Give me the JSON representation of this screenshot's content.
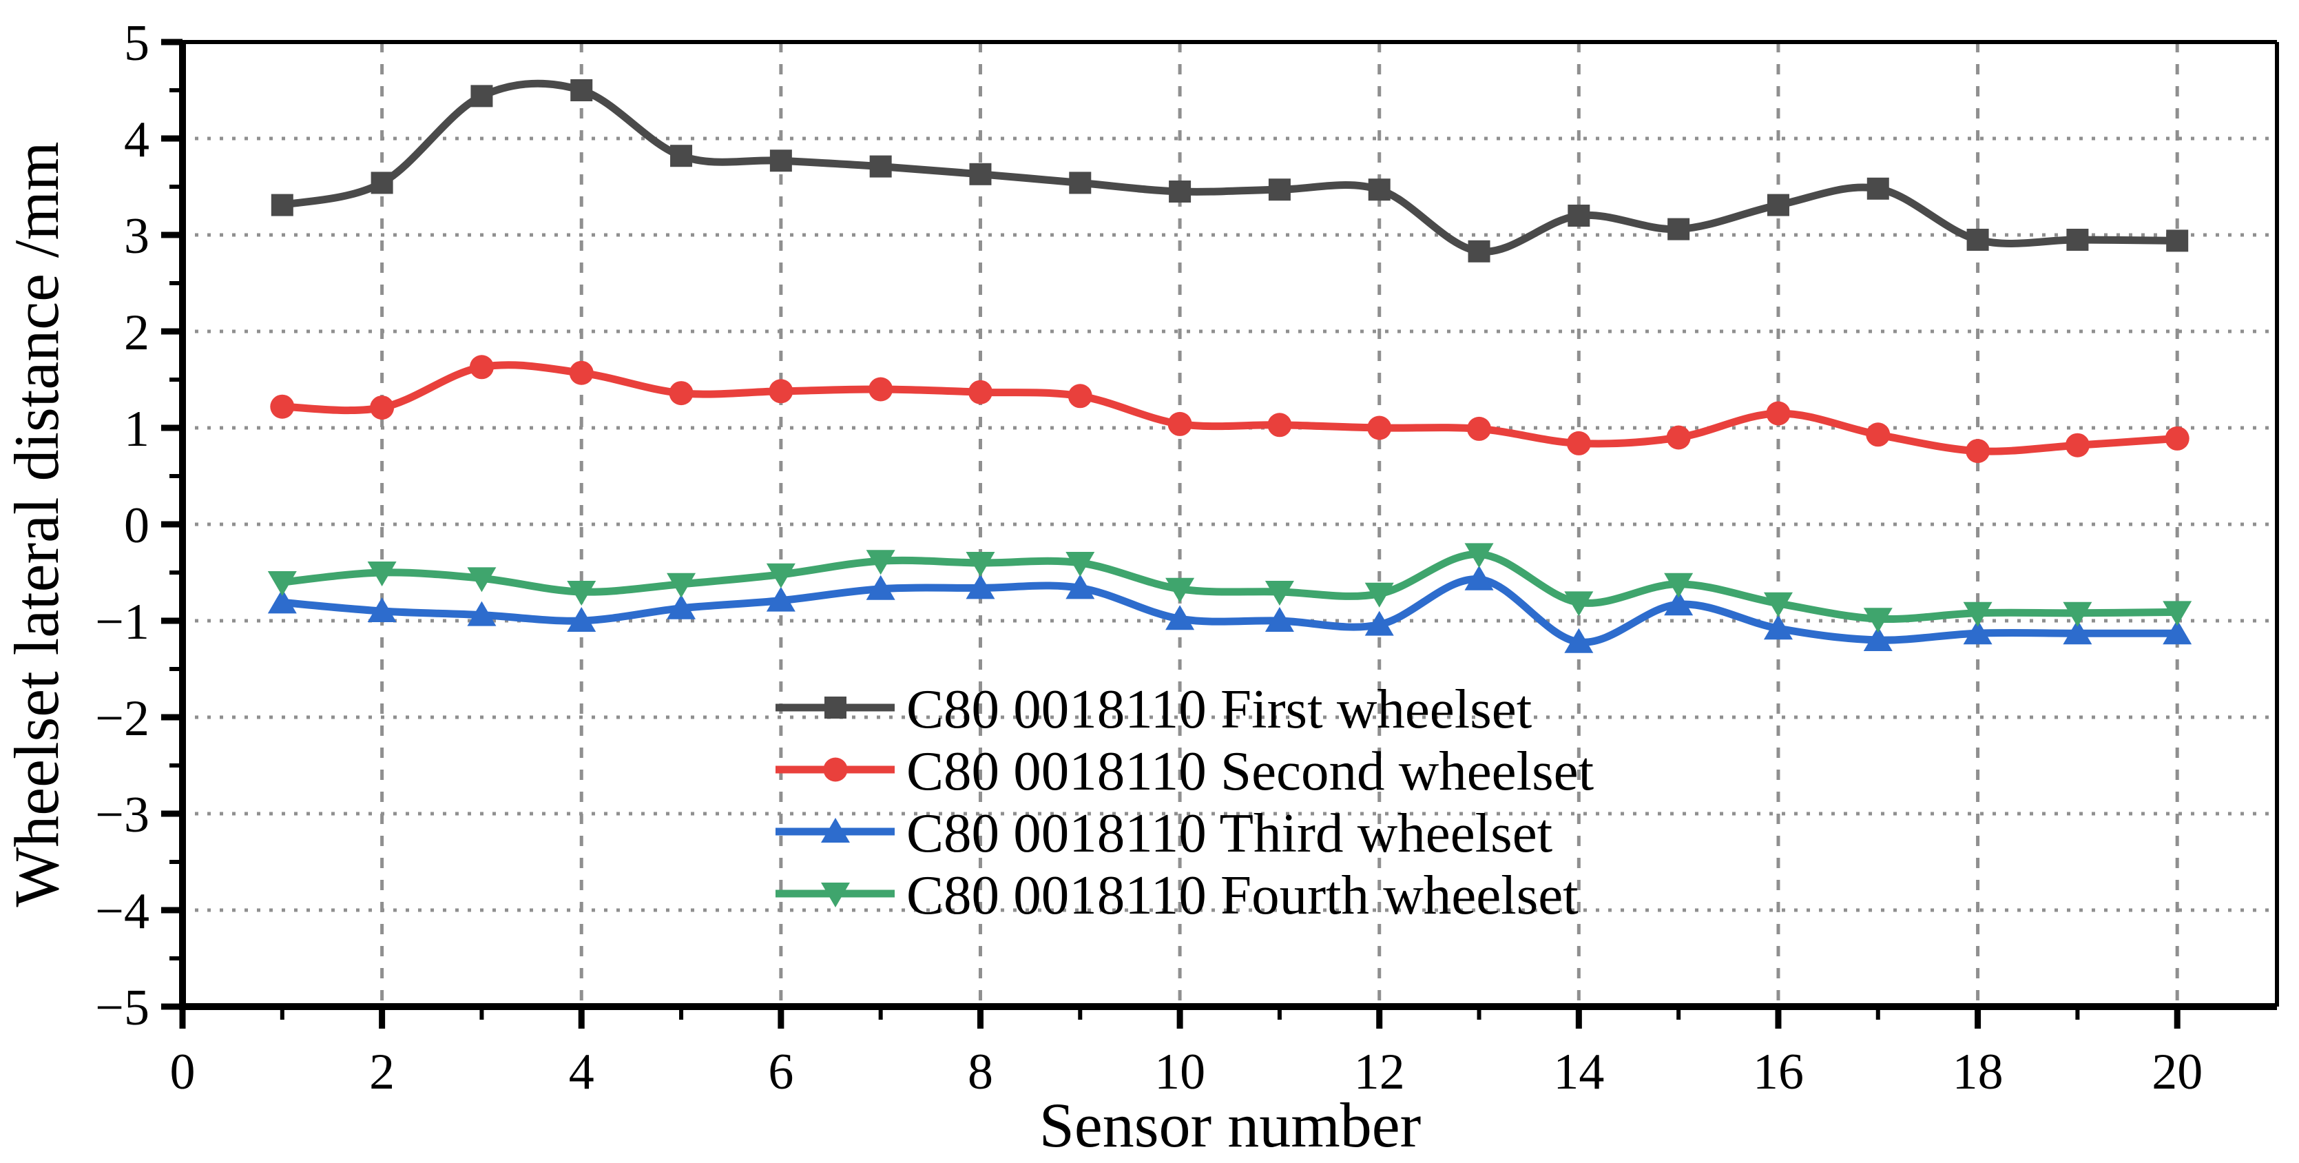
{
  "figure": {
    "background": "#ffffff",
    "text_color": "#000000",
    "grid_color": "#8f8f8f",
    "axis_color": "#000000"
  },
  "chart_data": {
    "type": "line",
    "title": "",
    "xlabel": "Sensor number",
    "ylabel": "Wheelset lateral distance /mm",
    "xlim": [
      0,
      21
    ],
    "ylim": [
      -5,
      5
    ],
    "grid": true,
    "legend_position": "inside-center-left",
    "x": [
      1,
      2,
      3,
      4,
      5,
      6,
      7,
      8,
      9,
      10,
      11,
      12,
      13,
      14,
      15,
      16,
      17,
      18,
      19,
      20
    ],
    "x_major_ticks": [
      0,
      2,
      4,
      6,
      8,
      10,
      12,
      14,
      16,
      18,
      20
    ],
    "x_tick_labels": [
      "0",
      "2",
      "4",
      "6",
      "8",
      "10",
      "12",
      "14",
      "16",
      "18",
      "20"
    ],
    "x_minor_ticks": [
      1,
      3,
      5,
      7,
      9,
      11,
      13,
      15,
      17,
      19
    ],
    "y_major_ticks": [
      5,
      4,
      3,
      2,
      1,
      0,
      -1,
      -2,
      -3,
      -4,
      -5
    ],
    "y_tick_labels": [
      "5",
      "4",
      "3",
      "2",
      "1",
      "0",
      "−1",
      "−2",
      "−3",
      "−4",
      "−5"
    ],
    "y_minor_ticks": [
      4.5,
      3.5,
      2.5,
      1.5,
      0.5,
      -0.5,
      -1.5,
      -2.5,
      -3.5,
      -4.5
    ],
    "y_gridlines": [
      4,
      3,
      2,
      1,
      0,
      -1,
      -2,
      -3,
      -4
    ],
    "x_gridlines": [
      2,
      4,
      6,
      8,
      10,
      12,
      14,
      16,
      18,
      20
    ],
    "series": [
      {
        "key": "first-wheelset",
        "name": "C80 0018110 First wheelset",
        "color": "#4a4a4a",
        "marker": "square",
        "values": [
          3.31,
          3.54,
          4.44,
          4.5,
          3.82,
          3.77,
          3.71,
          3.63,
          3.54,
          3.45,
          3.47,
          3.47,
          2.83,
          3.2,
          3.06,
          3.31,
          3.48,
          2.95,
          2.95,
          2.94
        ]
      },
      {
        "key": "second-wheelset",
        "name": "C80 0018110 Second wheelset",
        "color": "#e9403c",
        "marker": "circle",
        "values": [
          1.22,
          1.21,
          1.63,
          1.57,
          1.36,
          1.38,
          1.4,
          1.37,
          1.33,
          1.04,
          1.03,
          1.0,
          0.99,
          0.84,
          0.9,
          1.15,
          0.93,
          0.76,
          0.82,
          0.89
        ]
      },
      {
        "key": "third-wheelset",
        "name": "C80 0018110 Third wheelset",
        "color": "#2d6ccd",
        "marker": "triangle-up",
        "values": [
          -0.81,
          -0.9,
          -0.94,
          -1.0,
          -0.87,
          -0.79,
          -0.67,
          -0.66,
          -0.66,
          -0.98,
          -1.0,
          -1.04,
          -0.57,
          -1.22,
          -0.83,
          -1.08,
          -1.2,
          -1.13,
          -1.13,
          -1.13
        ]
      },
      {
        "key": "fourth-wheelset",
        "name": "C80 0018110 Fourth wheelset",
        "color": "#3fa56d",
        "marker": "triangle-down",
        "values": [
          -0.6,
          -0.5,
          -0.56,
          -0.7,
          -0.62,
          -0.52,
          -0.38,
          -0.4,
          -0.4,
          -0.67,
          -0.7,
          -0.72,
          -0.31,
          -0.81,
          -0.62,
          -0.82,
          -0.98,
          -0.92,
          -0.92,
          -0.91
        ]
      }
    ]
  }
}
